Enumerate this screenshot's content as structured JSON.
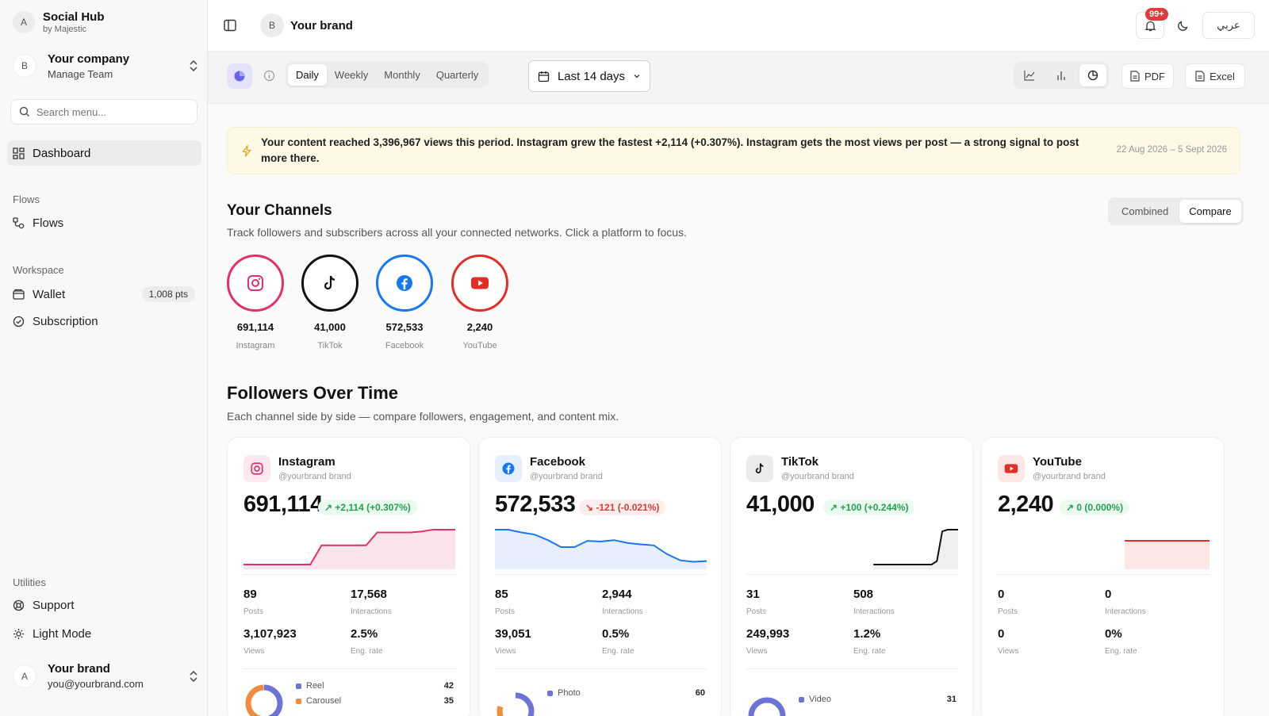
{
  "app": {
    "title": "Social Hub",
    "subtitle": "by Majestic",
    "avatar": "A"
  },
  "company": {
    "avatar": "B",
    "name": "Your company",
    "sub": "Manage Team"
  },
  "search": {
    "placeholder": "Search menu..."
  },
  "nav": {
    "dashboard": "Dashboard",
    "flows_section": "Flows",
    "flows": "Flows",
    "workspace_section": "Workspace",
    "wallet": "Wallet",
    "wallet_badge": "1,008 pts",
    "subscription": "Subscription",
    "utilities_section": "Utilities",
    "support": "Support",
    "light_mode": "Light Mode"
  },
  "user": {
    "avatar": "A",
    "name": "Your brand",
    "email": "you@yourbrand.com"
  },
  "header": {
    "brand_avatar": "B",
    "brand": "Your brand",
    "notif_count": "99+",
    "lang": "عربي"
  },
  "toolbar": {
    "periods": [
      "Daily",
      "Weekly",
      "Monthly",
      "Quarterly"
    ],
    "active_period": "Daily",
    "date_range": "Last 14 days",
    "pdf": "PDF",
    "excel": "Excel"
  },
  "insight": {
    "text": "Your content reached 3,396,967 views this period. Instagram grew the fastest +2,114 (+0.307%). Instagram gets the most views per post — a strong signal to post more there.",
    "range": "22 Aug 2026 – 5 Sept 2026"
  },
  "channels": {
    "title": "Your Channels",
    "subtitle": "Track followers and subscribers across all your connected networks. Click a platform to focus.",
    "view_combined": "Combined",
    "view_compare": "Compare",
    "items": [
      {
        "name": "Instagram",
        "value": "691,114",
        "color": "#e1306c"
      },
      {
        "name": "TikTok",
        "value": "41,000",
        "color": "#111111"
      },
      {
        "name": "Facebook",
        "value": "572,533",
        "color": "#1877f2"
      },
      {
        "name": "YouTube",
        "value": "2,240",
        "color": "#e52d27"
      }
    ]
  },
  "followers": {
    "title": "Followers Over Time",
    "subtitle": "Each channel side by side — compare followers, engagement, and content mix."
  },
  "cards": [
    {
      "name": "Instagram",
      "handle": "@yourbrand brand",
      "followers": "691,114",
      "change": "+2,114 (+0.307%)",
      "trend": "up",
      "color": "#e1306c",
      "fill": "#fce4ec",
      "posts": "89",
      "posts_label": "Posts",
      "interactions": "17,568",
      "interactions_label": "Interactions",
      "views": "3,107,923",
      "views_label": "Views",
      "eng": "2.5%",
      "eng_label": "Eng. rate",
      "series": [
        0,
        0,
        0,
        0,
        0,
        0,
        0,
        0.55,
        0.55,
        0.55,
        0.55,
        0.55,
        0.92,
        0.92,
        0.92,
        0.92,
        0.95,
        1,
        1,
        1
      ],
      "mix": [
        {
          "label": "Reel",
          "value": "42",
          "color": "#6b73d8"
        },
        {
          "label": "Carousel",
          "value": "35",
          "color": "#f08a3c"
        }
      ]
    },
    {
      "name": "Facebook",
      "handle": "@yourbrand brand",
      "followers": "572,533",
      "change": "-121 (-0.021%)",
      "trend": "down",
      "color": "#1877f2",
      "fill": "#e8effc",
      "posts": "85",
      "posts_label": "Posts",
      "interactions": "2,944",
      "interactions_label": "Interactions",
      "views": "39,051",
      "views_label": "Views",
      "eng": "0.5%",
      "eng_label": "Eng. rate",
      "series": [
        1,
        1,
        0.92,
        0.86,
        0.7,
        0.5,
        0.5,
        0.68,
        0.66,
        0.7,
        0.62,
        0.58,
        0.55,
        0.3,
        0.12,
        0.08,
        0.1
      ],
      "mix": [
        {
          "label": "Photo",
          "value": "60",
          "color": "#6b73d8"
        }
      ]
    },
    {
      "name": "TikTok",
      "handle": "@yourbrand brand",
      "followers": "41,000",
      "change": "+100 (+0.244%)",
      "trend": "up",
      "color": "#111111",
      "fill": "#f0f0f0",
      "posts": "31",
      "posts_label": "Posts",
      "interactions": "508",
      "interactions_label": "Interactions",
      "views": "249,993",
      "views_label": "Views",
      "eng": "1.2%",
      "eng_label": "Eng. rate",
      "series": [
        0,
        0,
        0,
        0,
        0,
        0,
        0,
        0,
        0,
        0,
        0,
        0,
        0.1,
        0.95,
        1,
        1,
        1
      ],
      "mix": [
        {
          "label": "Video",
          "value": "31",
          "color": "#6b73d8"
        }
      ]
    },
    {
      "name": "YouTube",
      "handle": "@yourbrand brand",
      "followers": "2,240",
      "change": "0 (0.000%)",
      "trend": "up",
      "color": "#e52d27",
      "fill": "#fde6e6",
      "posts": "0",
      "posts_label": "Posts",
      "interactions": "0",
      "interactions_label": "Interactions",
      "views": "0",
      "views_label": "Views",
      "eng": "0%",
      "eng_label": "Eng. rate",
      "series": [
        1,
        1,
        1,
        1,
        1,
        1,
        1,
        1,
        1,
        1
      ],
      "mix": []
    }
  ]
}
